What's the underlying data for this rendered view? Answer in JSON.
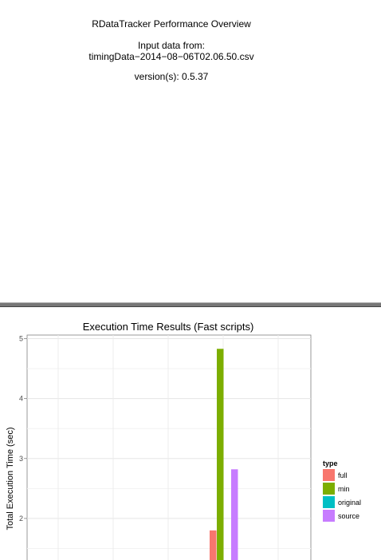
{
  "report": {
    "title": "RDataTracker Performance Overview",
    "input_label": "Input data from:",
    "input_file": "timingData−2014−08−06T02.06.50.csv",
    "version": "version(s): 0.5.37"
  },
  "colors": {
    "full": "#F8766D",
    "min": "#7CAE00",
    "original": "#00BFC4",
    "source": "#C77CFF"
  },
  "chart_data": {
    "type": "bar",
    "title": "Execution Time Results (Fast scripts)",
    "ylabel": "Total Execution Time (sec)",
    "xlabel": "",
    "ylim_visible": [
      1.2,
      5.1
    ],
    "yticks": [
      2,
      3,
      4,
      5
    ],
    "grid": true,
    "legend": {
      "title": "type",
      "placement": "right",
      "entries": [
        "full",
        "min",
        "original",
        "source"
      ]
    },
    "series": [
      {
        "name": "full",
        "values": [
          1.8
        ]
      },
      {
        "name": "min",
        "values": [
          4.83
        ]
      },
      {
        "name": "original",
        "values": []
      },
      {
        "name": "source",
        "values": [
          2.82
        ]
      }
    ]
  }
}
